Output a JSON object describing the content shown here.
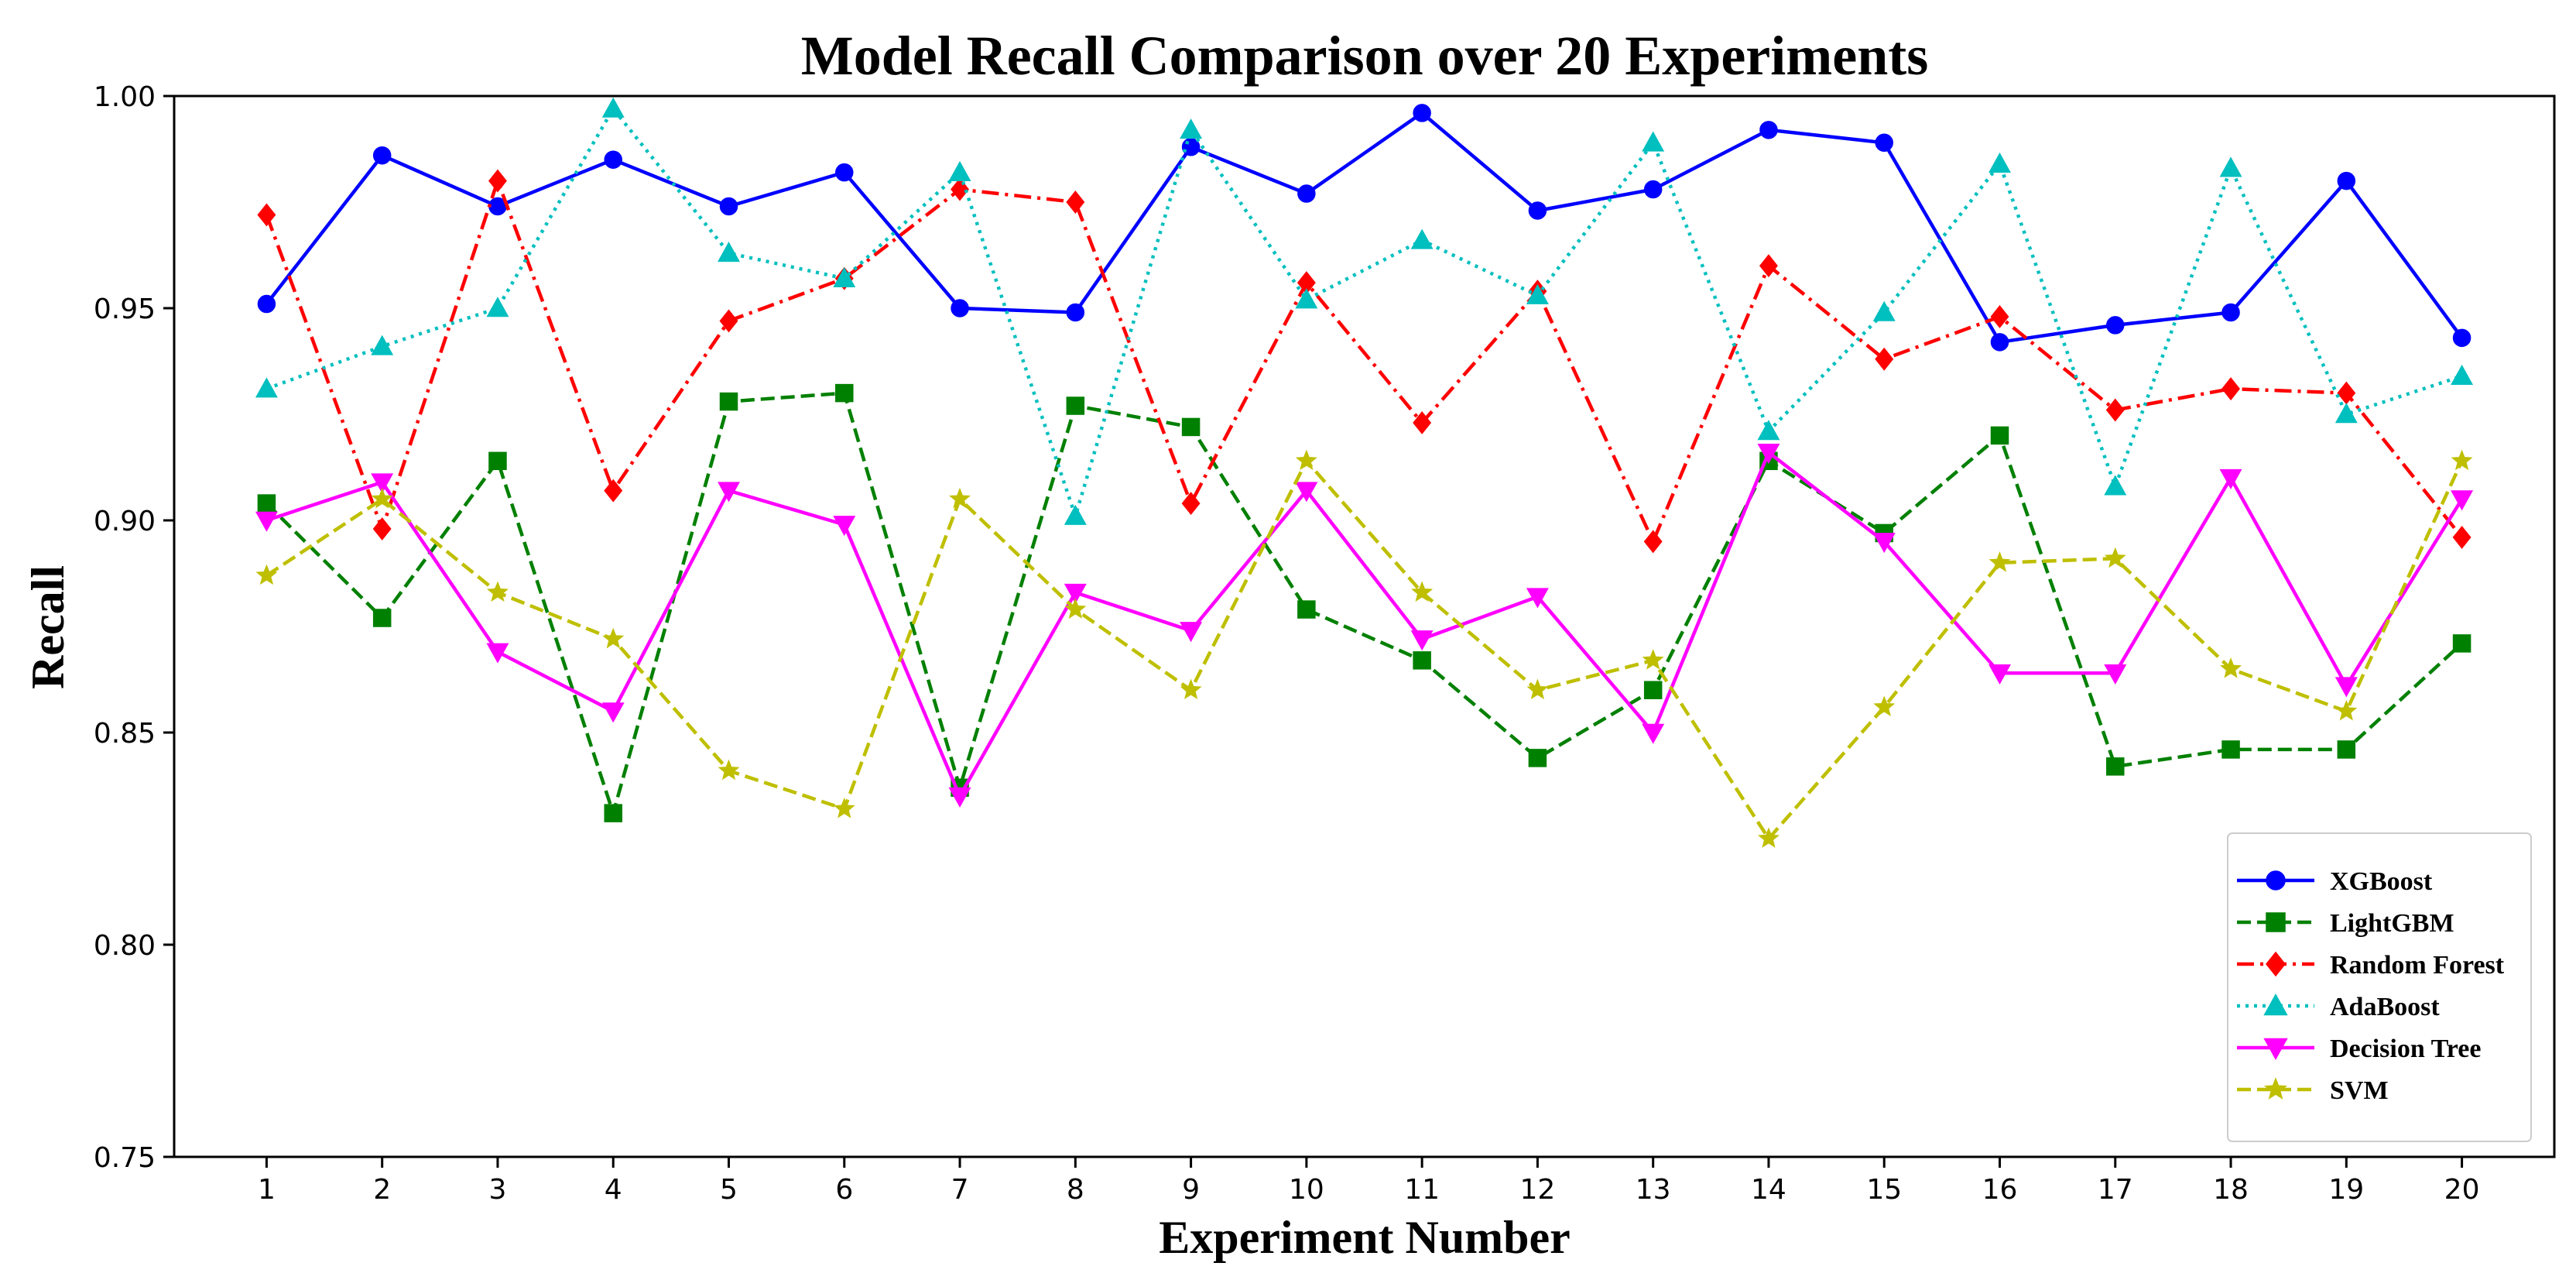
{
  "chart_data": {
    "type": "line",
    "title": "Model Recall Comparison over 20 Experiments",
    "xlabel": "Experiment Number",
    "ylabel": "Recall",
    "x": [
      1,
      2,
      3,
      4,
      5,
      6,
      7,
      8,
      9,
      10,
      11,
      12,
      13,
      14,
      15,
      16,
      17,
      18,
      19,
      20
    ],
    "x_tick_labels": [
      "1",
      "2",
      "3",
      "4",
      "5",
      "6",
      "7",
      "8",
      "9",
      "10",
      "11",
      "12",
      "13",
      "14",
      "15",
      "16",
      "17",
      "18",
      "19",
      "20"
    ],
    "xlim": [
      0.2,
      20.8
    ],
    "ylim": [
      0.75,
      1.0
    ],
    "y_ticks": [
      0.75,
      0.8,
      0.85,
      0.9,
      0.95,
      1.0
    ],
    "y_tick_labels": [
      "0.75",
      "0.80",
      "0.85",
      "0.90",
      "0.95",
      "1.00"
    ],
    "grid": false,
    "legend_position": "lower-right",
    "series": [
      {
        "name": "XGBoost",
        "color": "#0000ff",
        "dash": "solid",
        "marker": "circle",
        "values": [
          0.951,
          0.986,
          0.974,
          0.985,
          0.974,
          0.982,
          0.95,
          0.949,
          0.988,
          0.977,
          0.996,
          0.973,
          0.978,
          0.992,
          0.989,
          0.942,
          0.946,
          0.949,
          0.98,
          0.943
        ]
      },
      {
        "name": "LightGBM",
        "color": "#008000",
        "dash": "dashed",
        "marker": "square",
        "values": [
          0.904,
          0.877,
          0.914,
          0.831,
          0.928,
          0.93,
          0.837,
          0.927,
          0.922,
          0.879,
          0.867,
          0.844,
          0.86,
          0.914,
          0.897,
          0.92,
          0.842,
          0.846,
          0.846,
          0.871
        ]
      },
      {
        "name": "Random Forest",
        "color": "#ff0000",
        "dash": "dashdot",
        "marker": "diamond",
        "values": [
          0.972,
          0.898,
          0.98,
          0.907,
          0.947,
          0.957,
          0.978,
          0.975,
          0.904,
          0.956,
          0.923,
          0.954,
          0.895,
          0.96,
          0.938,
          0.948,
          0.926,
          0.931,
          0.93,
          0.896
        ]
      },
      {
        "name": "AdaBoost",
        "color": "#00bfbf",
        "dash": "dotted",
        "marker": "triangle-up",
        "values": [
          0.931,
          0.941,
          0.95,
          0.997,
          0.963,
          0.957,
          0.982,
          0.901,
          0.992,
          0.952,
          0.966,
          0.953,
          0.989,
          0.921,
          0.949,
          0.984,
          0.908,
          0.983,
          0.925,
          0.934
        ]
      },
      {
        "name": "Decision Tree",
        "color": "#ff00ff",
        "dash": "solid",
        "marker": "triangle-down",
        "values": [
          0.9,
          0.909,
          0.869,
          0.855,
          0.907,
          0.899,
          0.835,
          0.883,
          0.874,
          0.907,
          0.872,
          0.882,
          0.85,
          0.916,
          0.895,
          0.864,
          0.864,
          0.91,
          0.861,
          0.905
        ]
      },
      {
        "name": "SVM",
        "color": "#bfbf00",
        "dash": "dashed",
        "marker": "star",
        "values": [
          0.887,
          0.905,
          0.883,
          0.872,
          0.841,
          0.832,
          0.905,
          0.879,
          0.86,
          0.914,
          0.883,
          0.86,
          0.867,
          0.825,
          0.856,
          0.89,
          0.891,
          0.865,
          0.855,
          0.914
        ]
      }
    ]
  }
}
